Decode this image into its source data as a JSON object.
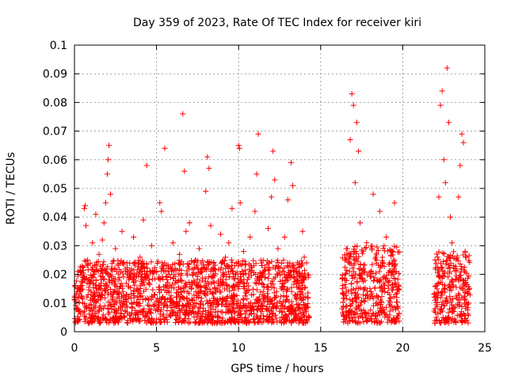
{
  "chart_data": {
    "type": "scatter",
    "title": "Day 359 of 2023, Rate Of TEC Index for receiver kiri",
    "xlabel": "GPS time / hours",
    "ylabel": "ROTI / TECUs",
    "xlim": [
      0,
      25
    ],
    "ylim": [
      0,
      0.1
    ],
    "xticks": [
      0,
      5,
      10,
      15,
      20,
      25
    ],
    "xtick_labels": [
      "0",
      "5",
      "10",
      "15",
      "20",
      "25"
    ],
    "yticks": [
      0,
      0.01,
      0.02,
      0.03,
      0.04,
      0.05,
      0.06,
      0.07,
      0.08,
      0.09,
      0.1
    ],
    "ytick_labels": [
      "0",
      "0.01",
      "0.02",
      "0.03",
      "0.04",
      "0.05",
      "0.06",
      "0.07",
      "0.08",
      "0.09",
      "0.1"
    ],
    "grid": true,
    "marker": "+",
    "color": "#ff0000",
    "series": [
      {
        "points": [
          [
            0.0,
            0.012
          ],
          [
            0.1,
            0.008
          ],
          [
            0.2,
            0.021
          ],
          [
            0.3,
            0.015
          ],
          [
            0.5,
            0.01
          ],
          [
            0.6,
            0.043
          ],
          [
            0.65,
            0.044
          ],
          [
            0.7,
            0.037
          ],
          [
            0.8,
            0.025
          ],
          [
            0.9,
            0.018
          ],
          [
            1.0,
            0.013
          ],
          [
            1.1,
            0.031
          ],
          [
            1.2,
            0.02
          ],
          [
            1.3,
            0.041
          ],
          [
            1.4,
            0.011
          ],
          [
            1.5,
            0.027
          ],
          [
            1.6,
            0.016
          ],
          [
            1.7,
            0.032
          ],
          [
            1.8,
            0.038
          ],
          [
            1.9,
            0.045
          ],
          [
            2.0,
            0.055
          ],
          [
            2.05,
            0.06
          ],
          [
            2.1,
            0.065
          ],
          [
            2.2,
            0.048
          ],
          [
            2.3,
            0.022
          ],
          [
            2.4,
            0.014
          ],
          [
            2.5,
            0.029
          ],
          [
            2.7,
            0.018
          ],
          [
            2.9,
            0.035
          ],
          [
            3.0,
            0.012
          ],
          [
            3.2,
            0.024
          ],
          [
            3.4,
            0.019
          ],
          [
            3.6,
            0.033
          ],
          [
            3.8,
            0.015
          ],
          [
            4.0,
            0.026
          ],
          [
            4.2,
            0.039
          ],
          [
            4.4,
            0.058
          ],
          [
            4.5,
            0.017
          ],
          [
            4.7,
            0.03
          ],
          [
            4.9,
            0.013
          ],
          [
            5.0,
            0.021
          ],
          [
            5.2,
            0.045
          ],
          [
            5.3,
            0.042
          ],
          [
            5.5,
            0.064
          ],
          [
            5.6,
            0.023
          ],
          [
            5.8,
            0.016
          ],
          [
            6.0,
            0.031
          ],
          [
            6.2,
            0.012
          ],
          [
            6.4,
            0.027
          ],
          [
            6.6,
            0.076
          ],
          [
            6.7,
            0.056
          ],
          [
            6.8,
            0.035
          ],
          [
            7.0,
            0.038
          ],
          [
            7.2,
            0.02
          ],
          [
            7.4,
            0.014
          ],
          [
            7.6,
            0.029
          ],
          [
            7.8,
            0.018
          ],
          [
            8.0,
            0.049
          ],
          [
            8.1,
            0.061
          ],
          [
            8.2,
            0.057
          ],
          [
            8.3,
            0.037
          ],
          [
            8.5,
            0.022
          ],
          [
            8.7,
            0.015
          ],
          [
            8.9,
            0.034
          ],
          [
            9.0,
            0.011
          ],
          [
            9.2,
            0.026
          ],
          [
            9.4,
            0.031
          ],
          [
            9.6,
            0.043
          ],
          [
            9.8,
            0.02
          ],
          [
            10.0,
            0.065
          ],
          [
            10.05,
            0.064
          ],
          [
            10.1,
            0.045
          ],
          [
            10.3,
            0.028
          ],
          [
            10.5,
            0.017
          ],
          [
            10.7,
            0.033
          ],
          [
            10.9,
            0.013
          ],
          [
            11.0,
            0.042
          ],
          [
            11.1,
            0.055
          ],
          [
            11.2,
            0.069
          ],
          [
            11.4,
            0.024
          ],
          [
            11.6,
            0.019
          ],
          [
            11.8,
            0.036
          ],
          [
            12.0,
            0.047
          ],
          [
            12.1,
            0.063
          ],
          [
            12.2,
            0.053
          ],
          [
            12.4,
            0.029
          ],
          [
            12.6,
            0.015
          ],
          [
            12.8,
            0.033
          ],
          [
            13.0,
            0.046
          ],
          [
            13.2,
            0.059
          ],
          [
            13.3,
            0.051
          ],
          [
            13.5,
            0.021
          ],
          [
            13.7,
            0.017
          ],
          [
            13.9,
            0.035
          ],
          [
            14.0,
            0.026
          ],
          [
            14.2,
            0.012
          ],
          [
            16.5,
            0.018
          ],
          [
            16.6,
            0.027
          ],
          [
            16.8,
            0.067
          ],
          [
            16.9,
            0.083
          ],
          [
            17.0,
            0.079
          ],
          [
            17.1,
            0.052
          ],
          [
            17.2,
            0.073
          ],
          [
            17.3,
            0.063
          ],
          [
            17.4,
            0.038
          ],
          [
            17.6,
            0.022
          ],
          [
            17.8,
            0.031
          ],
          [
            18.0,
            0.015
          ],
          [
            18.2,
            0.048
          ],
          [
            18.4,
            0.025
          ],
          [
            18.6,
            0.042
          ],
          [
            18.8,
            0.019
          ],
          [
            19.0,
            0.033
          ],
          [
            19.2,
            0.013
          ],
          [
            19.4,
            0.028
          ],
          [
            19.5,
            0.045
          ],
          [
            19.6,
            0.021
          ],
          [
            22.0,
            0.016
          ],
          [
            22.2,
            0.047
          ],
          [
            22.3,
            0.079
          ],
          [
            22.4,
            0.084
          ],
          [
            22.5,
            0.06
          ],
          [
            22.6,
            0.052
          ],
          [
            22.7,
            0.092
          ],
          [
            22.8,
            0.073
          ],
          [
            22.9,
            0.04
          ],
          [
            23.0,
            0.031
          ],
          [
            23.2,
            0.022
          ],
          [
            23.4,
            0.047
          ],
          [
            23.5,
            0.058
          ],
          [
            23.6,
            0.069
          ],
          [
            23.7,
            0.066
          ],
          [
            23.8,
            0.028
          ],
          [
            23.9,
            0.014
          ]
        ]
      }
    ],
    "dense_band": {
      "segments": [
        {
          "x": [
            0.0,
            14.3
          ],
          "y": [
            0.003,
            0.025
          ]
        },
        {
          "x": [
            16.3,
            19.8
          ],
          "y": [
            0.003,
            0.03
          ]
        },
        {
          "x": [
            21.9,
            24.1
          ],
          "y": [
            0.003,
            0.028
          ]
        }
      ]
    }
  }
}
